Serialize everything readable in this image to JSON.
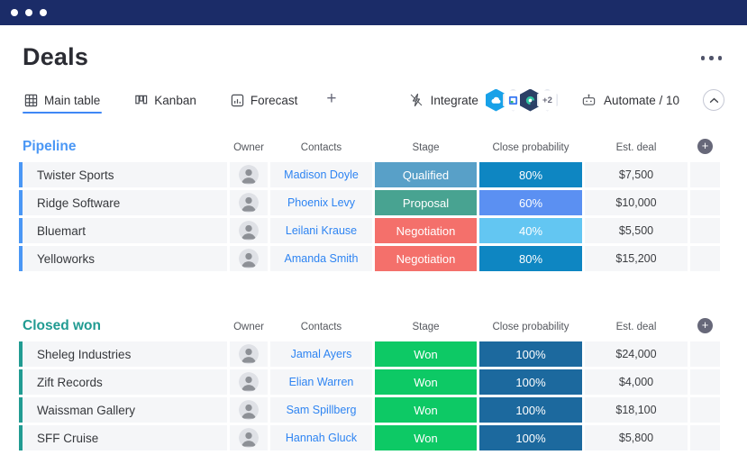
{
  "window": {
    "controls_count": 3
  },
  "header": {
    "title": "Deals",
    "menu": "board-options"
  },
  "tabs": [
    {
      "label": "Main table",
      "icon": "table-icon",
      "active": true
    },
    {
      "label": "Kanban",
      "icon": "kanban-icon",
      "active": false
    },
    {
      "label": "Forecast",
      "icon": "forecast-chart-icon",
      "active": false
    }
  ],
  "add_tab_label": "+",
  "toolbar": {
    "integrate_label": "Integrate",
    "integrations_overflow": "+2",
    "automate_label": "Automate / 10",
    "collapse_icon": "chevron-up-icon"
  },
  "columns": [
    "Owner",
    "Contacts",
    "Stage",
    "Close probability",
    "Est. deal"
  ],
  "colors": {
    "topbar": "#1b2c68",
    "active_tab_underline": "#3f87f5",
    "link_blue": "#2e84f2",
    "cell_bg": "#f5f6f8",
    "add_column_circle": "#676879"
  },
  "groups": [
    {
      "title": "Pipeline",
      "color": "#4a97f5",
      "rows": [
        {
          "name": "Twister Sports",
          "contact": "Madison Doyle",
          "stage": "Qualified",
          "stage_color": "#58a0c8",
          "probability": "80%",
          "probability_color": "#0e86c2",
          "deal": "$7,500"
        },
        {
          "name": "Ridge Software",
          "contact": "Phoenix Levy",
          "stage": "Proposal",
          "stage_color": "#48a391",
          "probability": "60%",
          "probability_color": "#5b90f2",
          "deal": "$10,000"
        },
        {
          "name": "Bluemart",
          "contact": "Leilani Krause",
          "stage": "Negotiation",
          "stage_color": "#f4706b",
          "probability": "40%",
          "probability_color": "#63c6f2",
          "deal": "$5,500"
        },
        {
          "name": "Yelloworks",
          "contact": "Amanda Smith",
          "stage": "Negotiation",
          "stage_color": "#f4706b",
          "probability": "80%",
          "probability_color": "#0e86c2",
          "deal": "$15,200"
        }
      ]
    },
    {
      "title": "Closed won",
      "color": "#219b92",
      "rows": [
        {
          "name": "Sheleg Industries",
          "contact": "Jamal Ayers",
          "stage": "Won",
          "stage_color": "#0dc965",
          "probability": "100%",
          "probability_color": "#1c699e",
          "deal": "$24,000"
        },
        {
          "name": "Zift Records",
          "contact": "Elian Warren",
          "stage": "Won",
          "stage_color": "#0dc965",
          "probability": "100%",
          "probability_color": "#1c699e",
          "deal": "$4,000"
        },
        {
          "name": "Waissman Gallery",
          "contact": "Sam Spillberg",
          "stage": "Won",
          "stage_color": "#0dc965",
          "probability": "100%",
          "probability_color": "#1c699e",
          "deal": "$18,100"
        },
        {
          "name": "SFF Cruise",
          "contact": "Hannah Gluck",
          "stage": "Won",
          "stage_color": "#0dc965",
          "probability": "100%",
          "probability_color": "#1c699e",
          "deal": "$5,800"
        }
      ]
    }
  ]
}
